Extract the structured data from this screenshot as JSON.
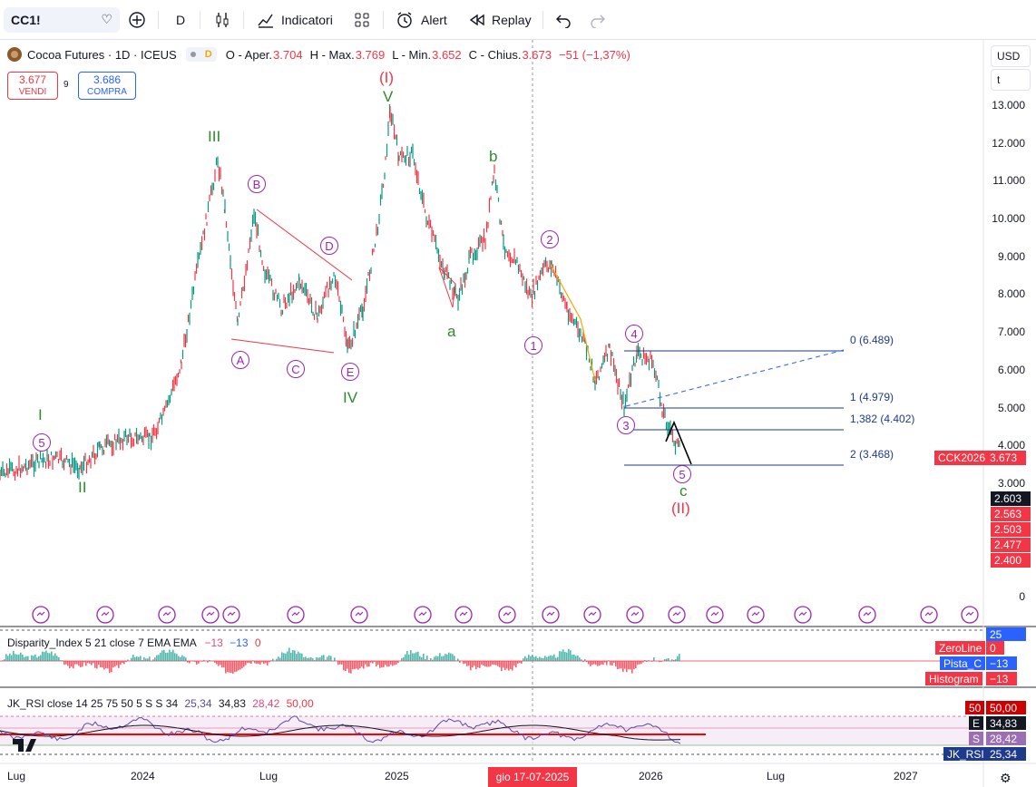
{
  "toolbar": {
    "symbol": "CC1!",
    "interval": "D",
    "indicators_label": "Indicatori",
    "alert_label": "Alert",
    "replay_label": "Replay"
  },
  "legend": {
    "title": "Cocoa Futures · 1D · ICEUS",
    "pill_letter": "D",
    "open_label": "O - Aper.",
    "open": "3.704",
    "high_label": "H - Max.",
    "high": "3.769",
    "low_label": "L - Min.",
    "low": "3.652",
    "close_label": "C - Chius.",
    "close": "3.673",
    "change": "−51 (−1,37%)"
  },
  "trade": {
    "sell_price": "3.677",
    "sell_label": "VENDI",
    "spread": "9",
    "buy_price": "3.686",
    "buy_label": "COMPRA"
  },
  "axis": {
    "currency": "USD",
    "unit": "t",
    "ticks": [
      "13.000",
      "12.000",
      "11.000",
      "10.000",
      "9.000",
      "8.000",
      "7.000",
      "6.000",
      "5.000",
      "4.000",
      "3.000",
      "0"
    ],
    "tags": [
      "2.603",
      "2.563",
      "2.503",
      "2.477",
      "2.400"
    ],
    "current_symbol": "CCK2026",
    "current_price": "3.673"
  },
  "waves": {
    "big_I": "(I)",
    "big_II": "(II)",
    "I": "I",
    "II": "II",
    "III": "III",
    "IV": "IV",
    "V": "V",
    "a": "a",
    "b": "b",
    "c": "c",
    "A": "A",
    "B": "B",
    "C": "C",
    "D": "D",
    "E": "E",
    "w1": "1",
    "w2": "2",
    "w3": "3",
    "w4": "4",
    "w5": "5",
    "w5_left": "5"
  },
  "fib": {
    "f0": "0 (6.489)",
    "f1": "1 (4.979)",
    "f1382": "1,382 (4.402)",
    "f2": "2 (3.468)"
  },
  "disparity": {
    "legend": "Disparity_Index 5 21 close 7 EMA EMA",
    "v1": "−13",
    "v2": "−13",
    "v3": "0",
    "axis_top": "25",
    "tags": [
      {
        "label": "ZeroLine",
        "value": "0"
      },
      {
        "label": "Pista_C",
        "value": "−13"
      },
      {
        "label": "Histogram",
        "value": "−13"
      }
    ]
  },
  "rsi": {
    "legend": "JK_RSI close 14 25 75 50 5 S S 34",
    "v1": "25,34",
    "v2": "34,83",
    "v3": "28,42",
    "v4": "50,00",
    "tags": [
      {
        "label": "50",
        "value": "50,00"
      },
      {
        "label": "E",
        "value": "34,83"
      },
      {
        "label": "S",
        "value": "28,42"
      },
      {
        "label": "JK_RSI",
        "value": "25,34"
      }
    ]
  },
  "time_axis": {
    "labels": [
      "Lug",
      "2024",
      "Lug",
      "2025",
      "2026",
      "Lug",
      "2027"
    ],
    "highlight": "gio 17-07-2025"
  },
  "colors": {
    "up": "#089981",
    "down": "#f23645",
    "wave_green": "#2e8b2e",
    "wave_purple": "#9c27b0",
    "fib": "#1e3a8a"
  }
}
